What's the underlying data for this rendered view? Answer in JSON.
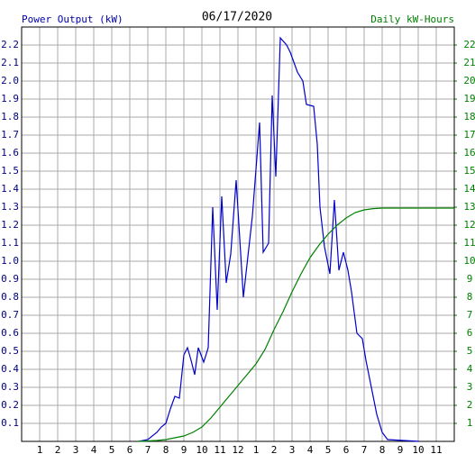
{
  "chart_data": {
    "type": "line",
    "title": "06/17/2020",
    "ylabel": "Power Output (kW)",
    "y2label": "Daily kW-Hours",
    "xlim": [
      0,
      24
    ],
    "xticks": [
      1,
      2,
      3,
      4,
      5,
      6,
      7,
      8,
      9,
      10,
      11,
      12,
      {
        "value": 13,
        "label": "1"
      },
      {
        "value": 14,
        "label": "2"
      },
      {
        "value": 15,
        "label": "3"
      },
      {
        "value": 16,
        "label": "4"
      },
      {
        "value": 17,
        "label": "5"
      },
      {
        "value": 18,
        "label": "6"
      },
      {
        "value": 19,
        "label": "7"
      },
      {
        "value": 20,
        "label": "8"
      },
      {
        "value": 21,
        "label": "9"
      },
      {
        "value": 22,
        "label": "10"
      },
      {
        "value": 23,
        "label": "11"
      }
    ],
    "ylim": [
      0,
      2.3
    ],
    "yticks": [
      0.1,
      0.2,
      0.3,
      0.4,
      0.5,
      0.6,
      0.7,
      0.8,
      0.9,
      {
        "value": 1,
        "label": "1.0"
      },
      1.1,
      1.2,
      1.3,
      1.4,
      1.5,
      1.6,
      1.7,
      1.8,
      1.9,
      {
        "value": 2,
        "label": "2.0"
      },
      2.1,
      2.2
    ],
    "y2lim": [
      0,
      23
    ],
    "y2ticks": [
      1,
      2,
      3,
      4,
      5,
      6,
      7,
      8,
      9,
      10,
      11,
      12,
      13,
      14,
      15,
      16,
      17,
      18,
      19,
      20,
      21,
      22
    ],
    "grid": true,
    "series": [
      {
        "color": "#0000cc",
        "x": [
          6.5,
          7,
          7.5,
          7.75,
          8,
          8.25,
          8.5,
          8.75,
          9,
          9.2,
          9.4,
          9.6,
          9.8,
          10.1,
          10.35,
          10.6,
          10.85,
          11.1,
          11.35,
          11.6,
          11.9,
          12.3,
          12.8,
          13.2,
          13.4,
          13.7,
          13.9,
          14.1,
          14.35,
          14.7,
          14.9,
          15.3,
          15.6,
          15.8,
          16.2,
          16.4,
          16.55,
          16.8,
          17.1,
          17.35,
          17.6,
          17.85,
          18.1,
          18.3,
          18.6,
          18.9,
          19.1,
          19.4,
          19.7,
          20,
          20.3,
          22.05
        ],
        "values": [
          0,
          0.01,
          0.05,
          0.08,
          0.1,
          0.18,
          0.25,
          0.24,
          0.48,
          0.52,
          0.45,
          0.37,
          0.52,
          0.44,
          0.52,
          1.3,
          0.73,
          1.36,
          0.88,
          1.04,
          1.45,
          0.8,
          1.25,
          1.77,
          1.05,
          1.1,
          1.92,
          1.47,
          2.24,
          2.2,
          2.16,
          2.05,
          2,
          1.87,
          1.86,
          1.65,
          1.3,
          1.08,
          0.93,
          1.34,
          0.95,
          1.05,
          0.95,
          0.83,
          0.6,
          0.57,
          0.45,
          0.3,
          0.15,
          0.05,
          0.01,
          0
        ]
      },
      {
        "color": "#008000",
        "axis": "y2",
        "x": [
          6.5,
          7.5,
          8,
          8.5,
          9,
          9.5,
          10,
          10.5,
          11,
          11.5,
          12,
          12.5,
          13,
          13.5,
          14,
          14.5,
          15,
          15.5,
          16,
          16.5,
          17,
          17.5,
          18,
          18.5,
          19,
          19.5,
          20,
          22,
          24
        ],
        "values": [
          0,
          0.05,
          0.1,
          0.2,
          0.3,
          0.5,
          0.8,
          1.3,
          1.9,
          2.5,
          3.1,
          3.7,
          4.3,
          5.1,
          6.2,
          7.2,
          8.3,
          9.3,
          10.2,
          10.9,
          11.5,
          12,
          12.4,
          12.7,
          12.85,
          12.92,
          12.95,
          12.95,
          12.95
        ]
      }
    ]
  }
}
